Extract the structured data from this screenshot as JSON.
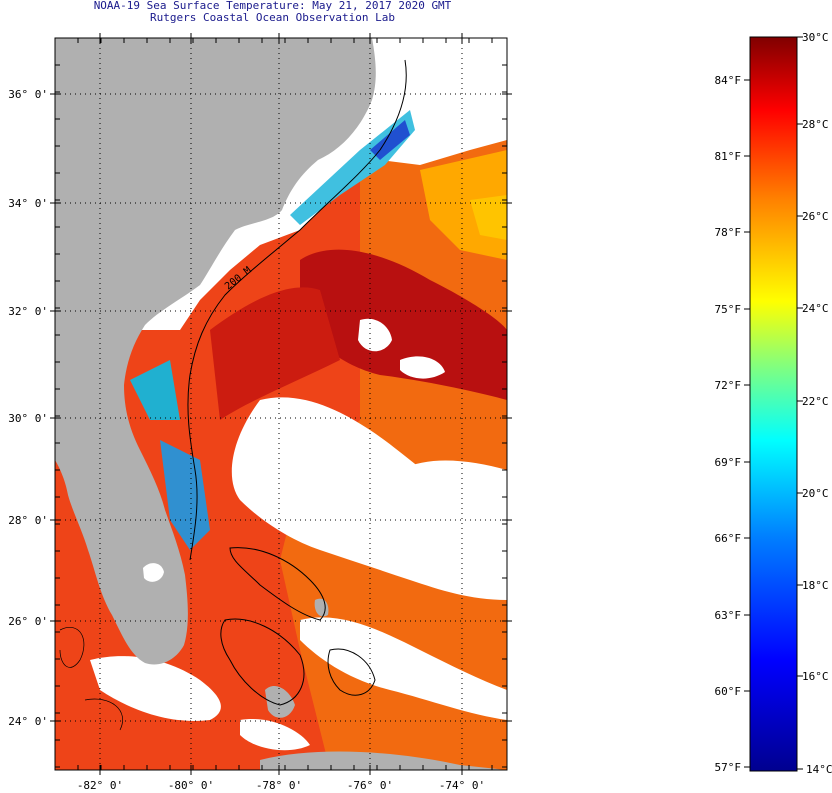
{
  "map": {
    "title": "NOAA-19 Sea Surface Temperature:  May 21, 2017 2020 GMT",
    "subtitle": "Rutgers Coastal Ocean Observation Lab",
    "lat_labels": [
      "36° 0'",
      "34° 0'",
      "32° 0'",
      "30° 0'",
      "28° 0'",
      "26° 0'",
      "24° 0'"
    ],
    "lon_labels": [
      "-82° 0'",
      "-80° 0'",
      "-78° 0'",
      "-76° 0'",
      "-74° 0'"
    ],
    "isobath_label": "200 M",
    "colors": {
      "land": "#b0b0b0",
      "cloud": "#ffffff",
      "warm": "#ef3a10",
      "hot": "#b81010"
    }
  },
  "colorbar": {
    "celsius_labels": [
      "30°C",
      "28°C",
      "26°C",
      "24°C",
      "22°C",
      "20°C",
      "18°C",
      "16°C",
      "14°C"
    ],
    "fahrenheit_labels": [
      "84°F",
      "81°F",
      "78°F",
      "75°F",
      "72°F",
      "69°F",
      "66°F",
      "63°F",
      "60°F",
      "57°F"
    ],
    "stops": [
      "#00008f",
      "#0000ff",
      "#0080ff",
      "#00ffff",
      "#80ff80",
      "#ffff00",
      "#ff8000",
      "#ff0000",
      "#800000"
    ]
  }
}
